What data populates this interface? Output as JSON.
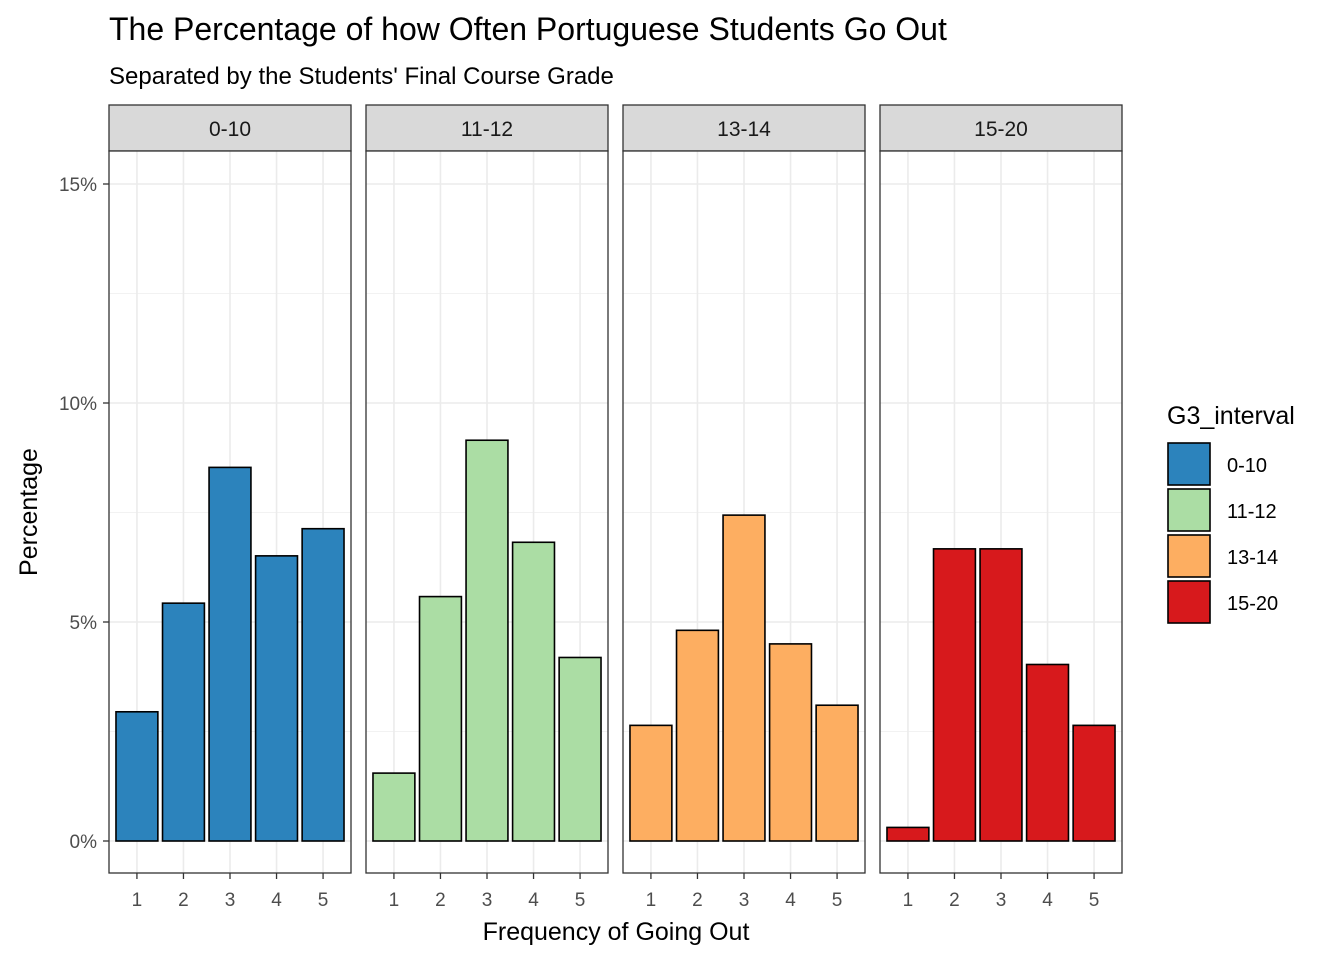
{
  "chart_data": {
    "type": "bar",
    "title": "The Percentage of how Often Portuguese Students Go Out",
    "subtitle": "Separated by the Students' Final Course Grade",
    "xlabel": "Frequency of Going Out",
    "ylabel": "Percentage",
    "categories": [
      "1",
      "2",
      "3",
      "4",
      "5"
    ],
    "ylim": [
      0,
      15.8
    ],
    "yticks": [
      0,
      5,
      10,
      15
    ],
    "ytick_labels": [
      "0%",
      "5%",
      "10%",
      "15%"
    ],
    "grid": true,
    "legend": {
      "title": "G3_interval",
      "position": "right",
      "entries": [
        "0-10",
        "11-12",
        "13-14",
        "15-20"
      ]
    },
    "series": [
      {
        "name": "0-10",
        "color": "#2c83bc",
        "values": [
          2.95,
          5.43,
          8.53,
          6.51,
          7.13
        ]
      },
      {
        "name": "11-12",
        "color": "#abdda4",
        "values": [
          1.55,
          5.58,
          9.15,
          6.82,
          4.19
        ]
      },
      {
        "name": "13-14",
        "color": "#fdae61",
        "values": [
          2.64,
          4.81,
          7.44,
          4.5,
          3.1
        ]
      },
      {
        "name": "15-20",
        "color": "#d7191c",
        "values": [
          0.31,
          6.67,
          6.67,
          4.03,
          2.64
        ]
      }
    ]
  }
}
